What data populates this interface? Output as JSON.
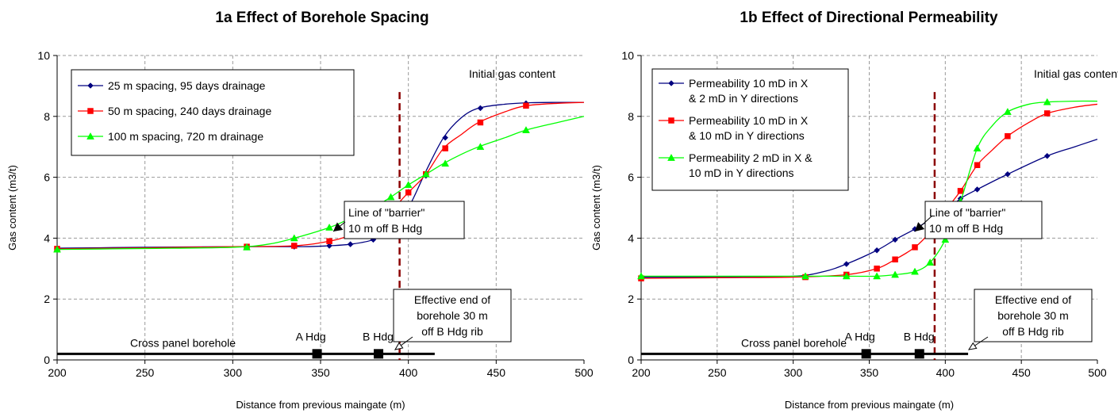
{
  "chart_data": [
    {
      "type": "line",
      "title": "1a Effect of Borehole Spacing",
      "xlabel": "Distance from previous maingate (m)",
      "ylabel": "Gas content (m3/t)",
      "xlim": [
        200,
        500
      ],
      "ylim": [
        0,
        10
      ],
      "xticks": [
        "200",
        "250",
        "300",
        "350",
        "400",
        "450",
        "500"
      ],
      "yticks": [
        "0",
        "2",
        "4",
        "6",
        "8",
        "10"
      ],
      "grid": true,
      "legend_position": "top-left",
      "series": [
        {
          "name": "25 m spacing, 95 days drainage",
          "color": "#000080",
          "marker": "diamond",
          "x": [
            200,
            250,
            300,
            340,
            355,
            367,
            380,
            390,
            400,
            410,
            420,
            430,
            440,
            455,
            470,
            485,
            500
          ],
          "y": [
            3.67,
            3.7,
            3.72,
            3.72,
            3.75,
            3.8,
            3.95,
            4.3,
            5.0,
            6.2,
            7.3,
            7.95,
            8.27,
            8.4,
            8.45,
            8.46,
            8.46
          ],
          "markers_x": [
            200,
            308,
            335,
            355,
            367,
            380,
            390,
            400,
            410,
            421,
            441,
            467
          ],
          "markers_y": [
            3.67,
            3.72,
            3.72,
            3.75,
            3.8,
            3.95,
            4.3,
            5.0,
            6.05,
            7.3,
            8.27,
            8.43
          ]
        },
        {
          "name": "50 m spacing, 240 days drainage",
          "color": "#ff0000",
          "marker": "square",
          "x": [
            200,
            250,
            300,
            335,
            355,
            367,
            380,
            390,
            400,
            410,
            420,
            430,
            440,
            455,
            467,
            485,
            500
          ],
          "y": [
            3.65,
            3.68,
            3.72,
            3.75,
            3.9,
            4.1,
            4.45,
            4.9,
            5.5,
            6.1,
            6.95,
            7.4,
            7.8,
            8.15,
            8.35,
            8.43,
            8.46
          ],
          "markers_x": [
            200,
            308,
            335,
            355,
            367,
            380,
            390,
            400,
            410,
            421,
            441,
            467
          ],
          "markers_y": [
            3.65,
            3.72,
            3.75,
            3.9,
            4.1,
            4.45,
            4.9,
            5.5,
            6.1,
            6.95,
            7.8,
            8.35
          ]
        },
        {
          "name": "100 m spacing, 720 m drainage",
          "color": "#00ff00",
          "marker": "triangle",
          "x": [
            200,
            250,
            300,
            320,
            335,
            355,
            367,
            380,
            390,
            400,
            410,
            420,
            430,
            440,
            455,
            467,
            485,
            500
          ],
          "y": [
            3.63,
            3.66,
            3.7,
            3.8,
            4.0,
            4.35,
            4.65,
            5.0,
            5.35,
            5.75,
            6.1,
            6.45,
            6.75,
            7.0,
            7.3,
            7.55,
            7.8,
            8.0
          ],
          "markers_x": [
            200,
            308,
            335,
            355,
            367,
            380,
            390,
            400,
            410,
            421,
            441,
            467
          ],
          "markers_y": [
            3.63,
            3.7,
            4.0,
            4.35,
            4.65,
            5.0,
            5.35,
            5.75,
            6.1,
            6.45,
            7.0,
            7.55
          ]
        }
      ],
      "annotations": {
        "initial_gas": "Initial gas content",
        "barrier_line1": "Line of \"barrier\"",
        "barrier_line2": "10 m off B Hdg",
        "end_line1": "Effective end of",
        "end_line2": "borehole 30 m",
        "end_line3": "off B Hdg rib",
        "borehole": "Cross panel borehole",
        "a_hdg": "A Hdg",
        "b_hdg": "B Hdg"
      },
      "barrier_x": 395,
      "borehole_end_x": 415,
      "borehole_y": 0.2,
      "a_hdg_x": 348,
      "b_hdg_x": 383
    },
    {
      "type": "line",
      "title": "1b Effect of Directional Permeability",
      "xlabel": "Distance from previous maingate (m)",
      "ylabel": "Gas content (m3/t)",
      "xlim": [
        200,
        500
      ],
      "ylim": [
        0,
        10
      ],
      "xticks": [
        "200",
        "250",
        "300",
        "350",
        "400",
        "450",
        "500"
      ],
      "yticks": [
        "0",
        "2",
        "4",
        "6",
        "8",
        "10"
      ],
      "grid": true,
      "legend_position": "top-left",
      "series": [
        {
          "name_lines": [
            "Permeability 10 mD in X",
            "& 2 mD in Y directions"
          ],
          "color": "#000080",
          "marker": "diamond",
          "x": [
            200,
            250,
            300,
            320,
            335,
            355,
            367,
            380,
            390,
            400,
            410,
            421,
            441,
            467,
            485,
            500
          ],
          "y": [
            2.72,
            2.72,
            2.75,
            2.9,
            3.15,
            3.6,
            3.95,
            4.3,
            4.6,
            4.85,
            5.3,
            5.6,
            6.1,
            6.7,
            7.0,
            7.25
          ],
          "markers_x": [
            200,
            308,
            335,
            355,
            367,
            380,
            390,
            400,
            410,
            421,
            441,
            467
          ],
          "markers_y": [
            2.72,
            2.75,
            3.15,
            3.6,
            3.95,
            4.3,
            4.6,
            4.85,
            5.3,
            5.6,
            6.1,
            6.7
          ]
        },
        {
          "name_lines": [
            "Permeability 10 mD in X",
            "& 10 mD in Y directions"
          ],
          "color": "#ff0000",
          "marker": "square",
          "x": [
            200,
            250,
            300,
            335,
            355,
            367,
            380,
            390,
            400,
            410,
            421,
            431,
            441,
            455,
            467,
            485,
            500
          ],
          "y": [
            2.68,
            2.7,
            2.72,
            2.8,
            3.0,
            3.3,
            3.7,
            4.2,
            4.9,
            5.55,
            6.4,
            6.9,
            7.35,
            7.8,
            8.1,
            8.3,
            8.4
          ],
          "markers_x": [
            200,
            308,
            335,
            355,
            367,
            380,
            390,
            400,
            410,
            421,
            441,
            467
          ],
          "markers_y": [
            2.68,
            2.72,
            2.8,
            3.0,
            3.3,
            3.7,
            4.2,
            4.9,
            5.55,
            6.4,
            7.35,
            8.1
          ]
        },
        {
          "name_lines": [
            "Permeability 2 mD in X &",
            "10 mD in Y directions"
          ],
          "color": "#00ff00",
          "marker": "triangle",
          "x": [
            200,
            250,
            300,
            335,
            355,
            367,
            380,
            390,
            400,
            410,
            421,
            431,
            441,
            455,
            467,
            485,
            500
          ],
          "y": [
            2.75,
            2.75,
            2.75,
            2.75,
            2.75,
            2.8,
            2.9,
            3.2,
            3.95,
            5.2,
            6.95,
            7.7,
            8.15,
            8.4,
            8.47,
            8.5,
            8.5
          ],
          "markers_x": [
            200,
            308,
            335,
            355,
            367,
            380,
            390,
            400,
            410,
            421,
            441,
            467
          ],
          "markers_y": [
            2.75,
            2.75,
            2.75,
            2.75,
            2.8,
            2.9,
            3.2,
            3.95,
            5.2,
            6.95,
            8.15,
            8.47
          ]
        }
      ],
      "annotations": {
        "initial_gas": "Initial gas content",
        "barrier_line1": "Line of \"barrier\"",
        "barrier_line2": "10 m off B Hdg",
        "end_line1": "Effective end of",
        "end_line2": "borehole 30 m",
        "end_line3": "off B Hdg rib",
        "borehole": "Cross panel borehole",
        "a_hdg": "A Hdg",
        "b_hdg": "B Hdg"
      },
      "barrier_x": 393,
      "borehole_end_x": 415,
      "borehole_y": 0.2,
      "a_hdg_x": 348,
      "b_hdg_x": 383
    }
  ]
}
